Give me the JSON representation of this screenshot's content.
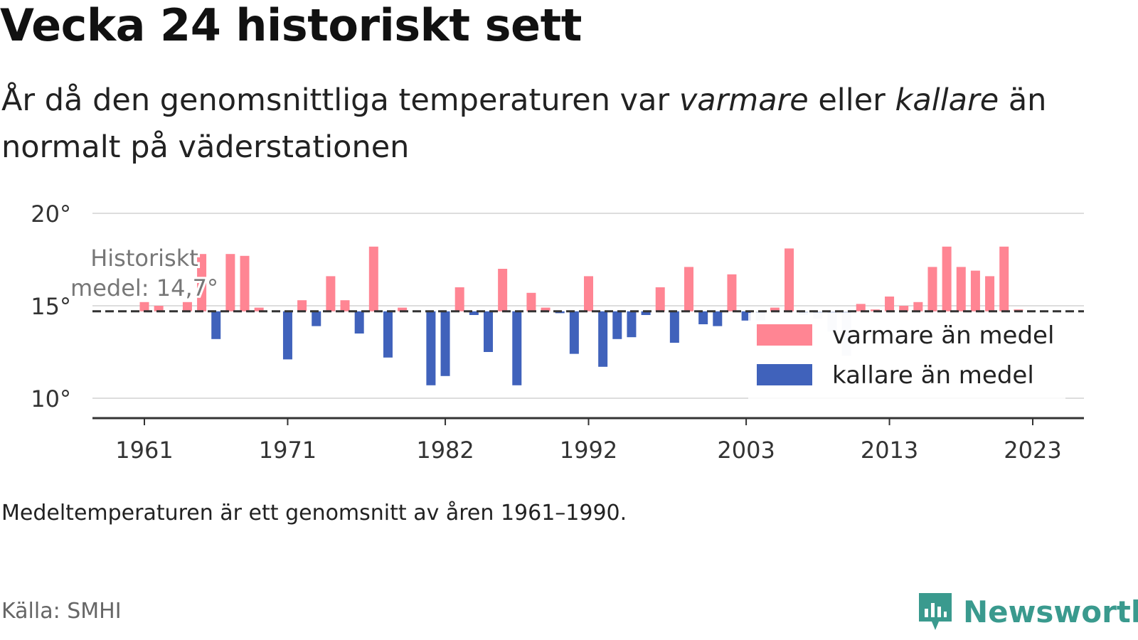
{
  "title": "Vecka 24 historiskt sett",
  "subtitle": {
    "part1": "År då den genomsnittliga temperaturen var ",
    "warm_word": "varmare",
    "part2": " eller ",
    "cold_word": "kallare",
    "part3": " än normalt på väderstationen"
  },
  "note": "Medeltemperaturen är ett genomsnitt av åren 1961–1990.",
  "source": "Källa: SMHI",
  "brand": {
    "name": "Newsworthy",
    "icon": "newsworthy-logo-icon"
  },
  "colors": {
    "warm": "#ff8593",
    "cold": "#4062bb",
    "faded_cold": "#d9e0f0",
    "baseline": "#333333",
    "grid": "#dddddd",
    "brand": "#3a9a8e"
  },
  "chart_data": {
    "type": "bar",
    "baseline": 14.7,
    "baseline_label": [
      "Historiskt",
      "medel: 14,7°"
    ],
    "ylim": [
      9,
      20
    ],
    "yticks": [
      10,
      15,
      20
    ],
    "ytick_labels": [
      "10°",
      "15°",
      "20°"
    ],
    "xticks": [
      1961,
      1971,
      1982,
      1992,
      2003,
      2013,
      2023
    ],
    "xtick_labels": [
      "1961",
      "1971",
      "1982",
      "1992",
      "2003",
      "2013",
      "2023"
    ],
    "grid": true,
    "legend": {
      "position": "right",
      "items": [
        {
          "label": "varmare än medel",
          "color": "#ff8593"
        },
        {
          "label": "kallare än medel",
          "color": "#4062bb"
        }
      ]
    },
    "series": [
      {
        "x": [
          1961,
          1962,
          1963,
          1964,
          1965,
          1966,
          1967,
          1968,
          1969,
          1970,
          1971,
          1972,
          1973,
          1974,
          1975,
          1976,
          1977,
          1978,
          1979,
          1980,
          1981,
          1982,
          1983,
          1984,
          1985,
          1986,
          1987,
          1988,
          1989,
          1990,
          1991,
          1992,
          1993,
          1994,
          1995,
          1996,
          1997,
          1998,
          1999,
          2000,
          2001,
          2002,
          2003,
          2004,
          2005,
          2006,
          2007,
          2008,
          2009,
          2010,
          2011,
          2012,
          2013,
          2014,
          2015,
          2016,
          2017,
          2018,
          2019,
          2020,
          2021,
          2022,
          2023,
          2024
        ],
        "y": [
          15.2,
          15.0,
          14.7,
          15.2,
          17.8,
          13.2,
          17.8,
          17.7,
          14.9,
          14.7,
          12.1,
          15.3,
          13.9,
          16.6,
          15.3,
          13.5,
          18.2,
          12.2,
          14.9,
          14.7,
          10.7,
          11.2,
          16.0,
          14.5,
          12.5,
          17.0,
          10.7,
          15.7,
          14.9,
          14.6,
          12.4,
          16.6,
          11.7,
          13.2,
          13.3,
          14.5,
          16.0,
          13.0,
          17.1,
          14.0,
          13.9,
          16.7,
          14.2,
          14.2,
          14.9,
          18.1,
          14.5,
          14.3,
          13.6,
          12.3,
          15.1,
          14.8,
          15.5,
          15.0,
          15.2,
          17.1,
          18.2,
          17.1,
          16.9,
          16.6,
          18.2,
          14.8,
          14.7,
          14.7
        ]
      }
    ]
  }
}
